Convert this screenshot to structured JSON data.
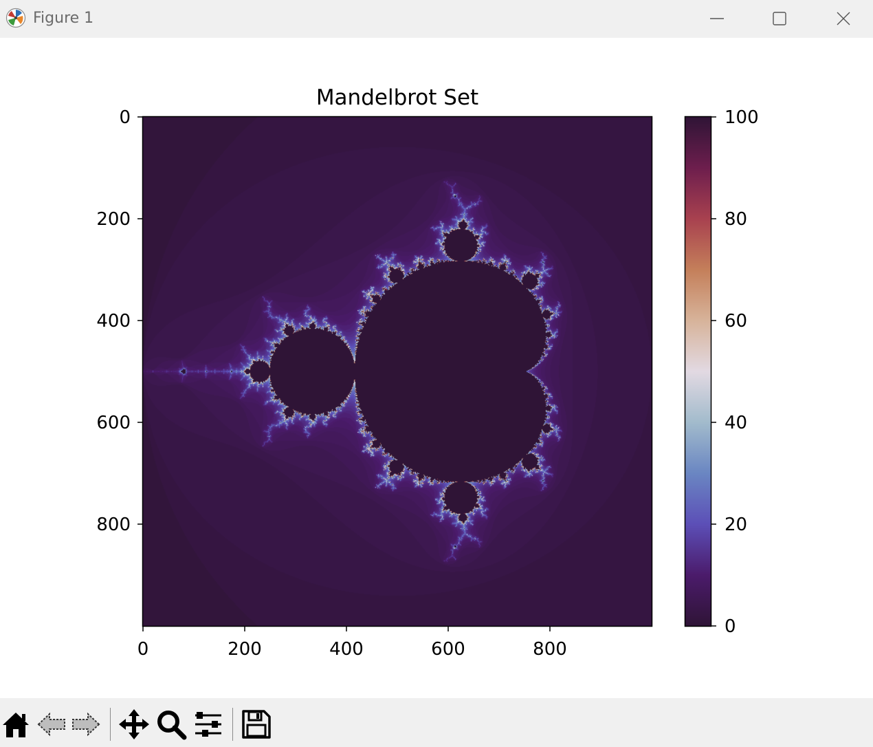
{
  "window": {
    "title": "Figure 1"
  },
  "chart_data": {
    "type": "heatmap",
    "title": "Mandelbrot Set",
    "xlabel": "",
    "ylabel": "",
    "x_ticks": [
      "0",
      "200",
      "400",
      "600",
      "800"
    ],
    "y_ticks": [
      "0",
      "200",
      "400",
      "600",
      "800"
    ],
    "xlim": [
      0,
      1000
    ],
    "ylim": [
      1000,
      0
    ],
    "colormap": "twilight_shifted",
    "colorbar": {
      "range": [
        0,
        100
      ],
      "ticks": [
        "0",
        "20",
        "40",
        "60",
        "80",
        "100"
      ]
    },
    "mandelbrot": {
      "real_range": [
        -2.0,
        1.0
      ],
      "imag_range": [
        -1.5,
        1.5
      ],
      "max_iter": 100,
      "grid": [
        1000,
        1000
      ]
    }
  },
  "toolbar": {
    "tools": [
      {
        "id": "home",
        "icon": "home-icon"
      },
      {
        "id": "back",
        "icon": "back-arrow-icon"
      },
      {
        "id": "forward",
        "icon": "forward-arrow-icon"
      },
      {
        "id": "pan",
        "icon": "pan-icon"
      },
      {
        "id": "zoom",
        "icon": "zoom-icon"
      },
      {
        "id": "configure",
        "icon": "configure-subplots-icon"
      },
      {
        "id": "save",
        "icon": "save-icon"
      }
    ]
  }
}
